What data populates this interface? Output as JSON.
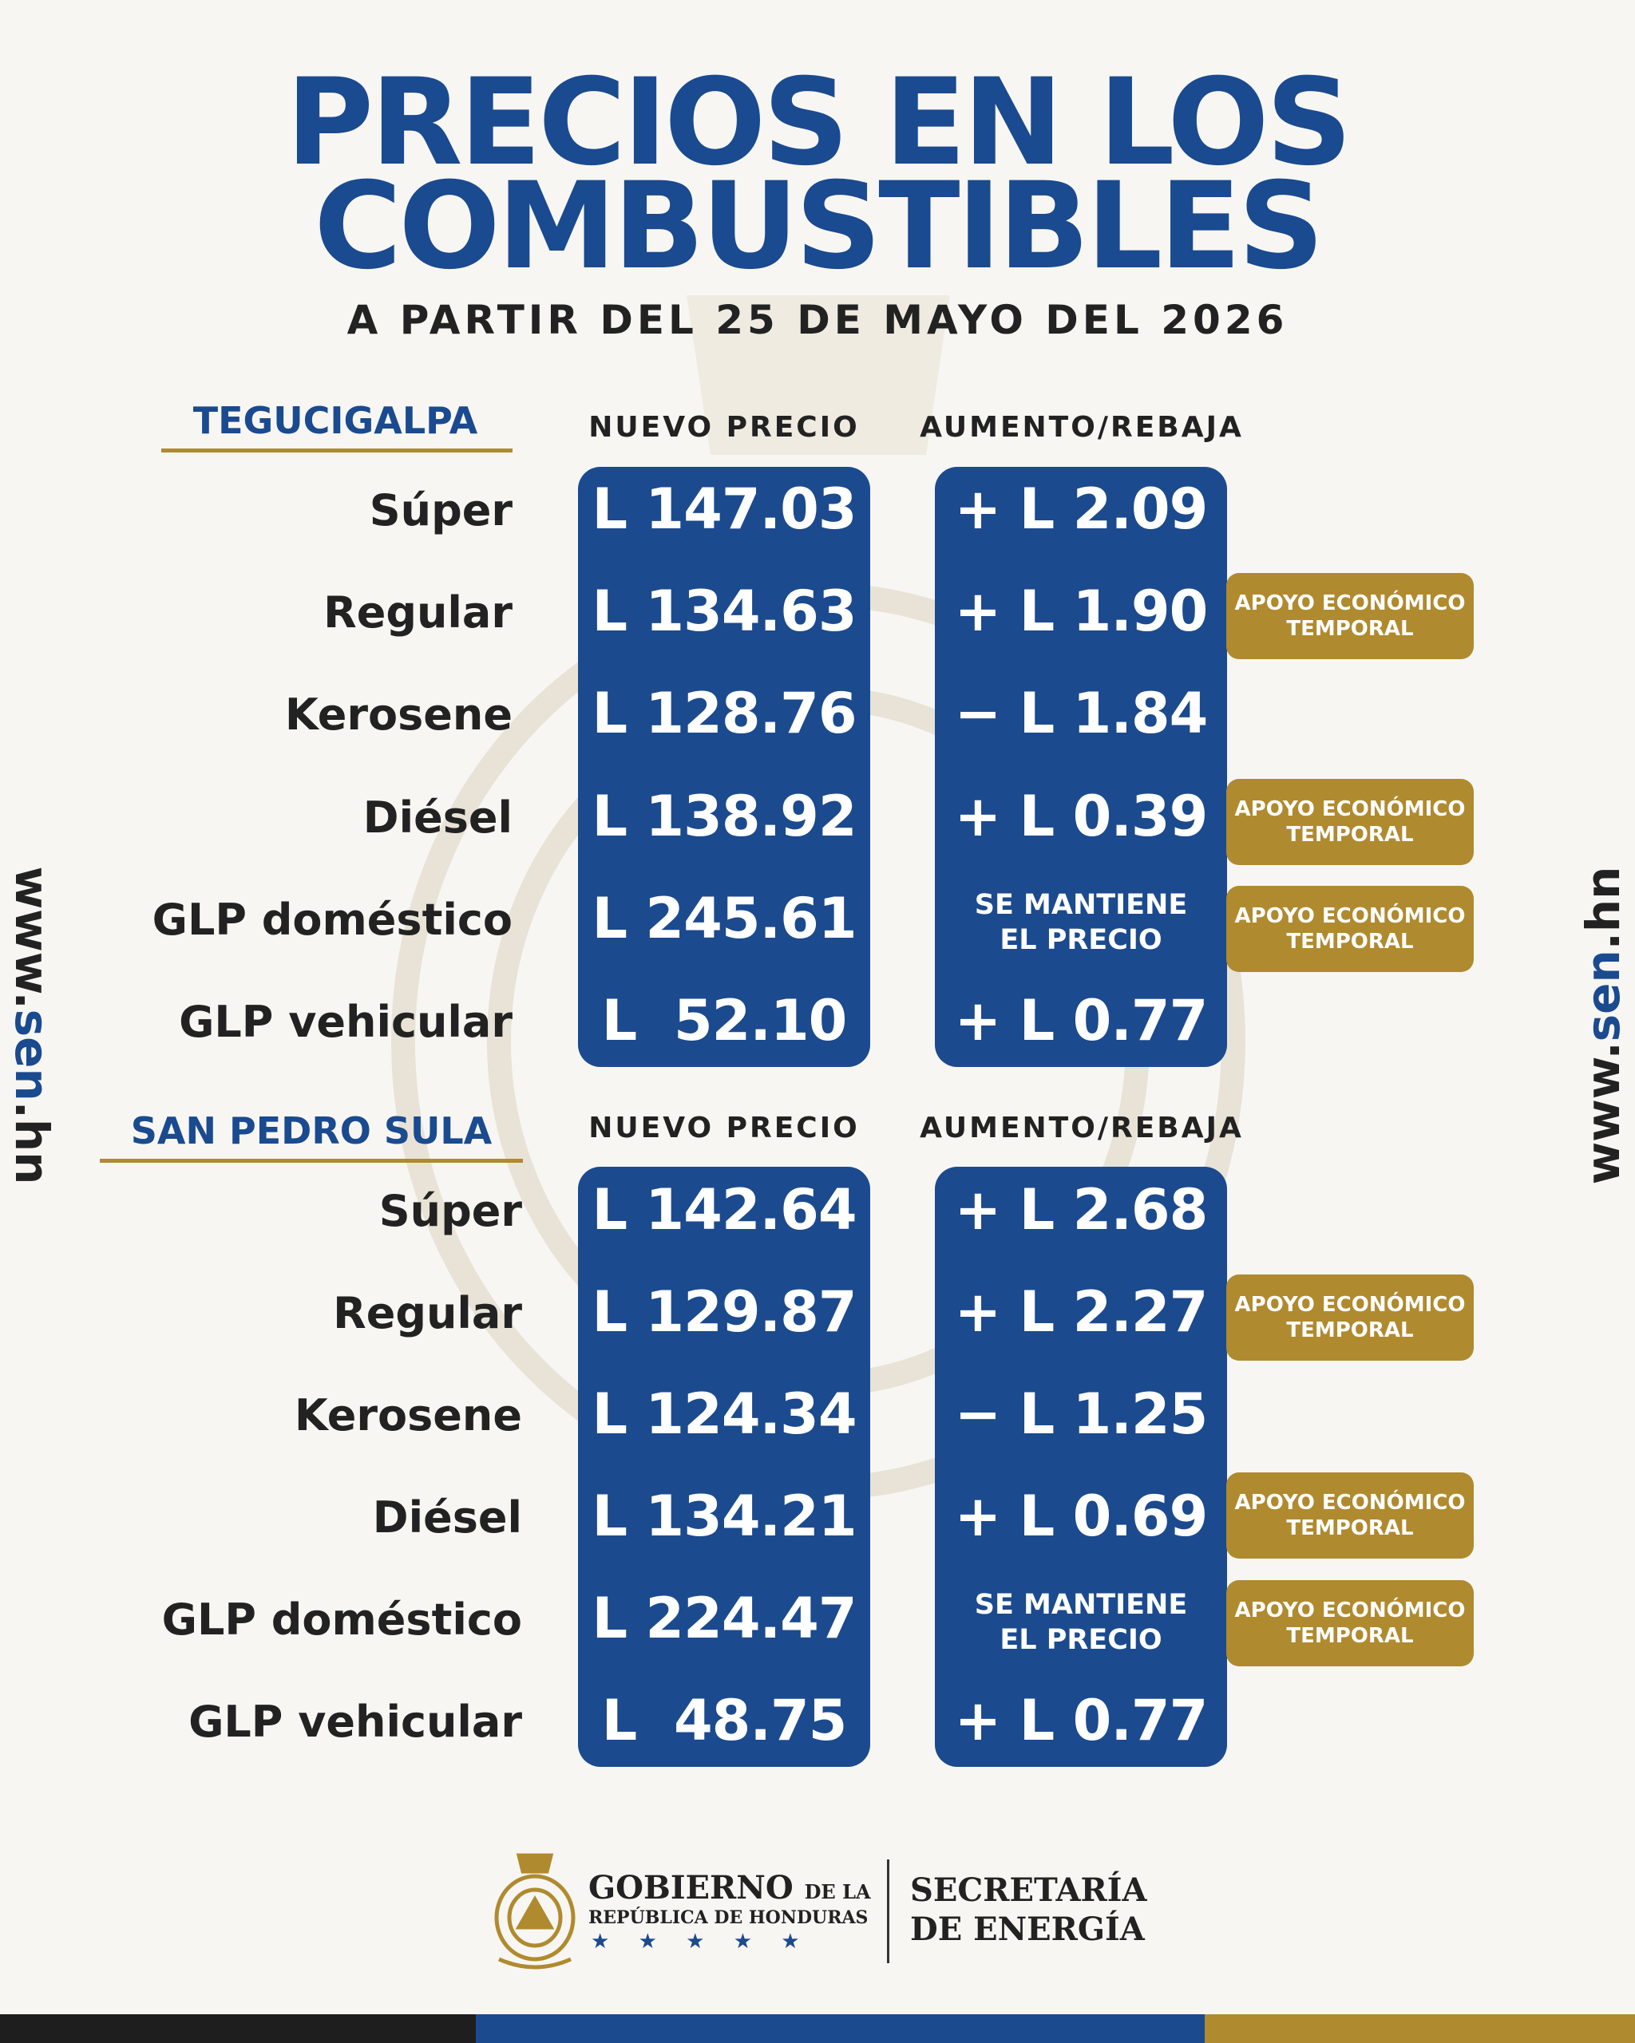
{
  "title_line1": "PRECIOS EN LOS",
  "title_line2": "COMBUSTIBLES",
  "subtitle": "A PARTIR DEL 25 DE MAYO DEL 2026",
  "col_new_price": "NUEVO PRECIO",
  "col_change": "AUMENTO/REBAJA",
  "badge_line1": "APOYO ECONÓMICO",
  "badge_line2": "TEMPORAL",
  "side_prefix": "www.",
  "side_domain": "sen",
  "side_suffix": ".hn",
  "tegucigalpa": {
    "city": "TEGUCIGALPA",
    "rows": [
      {
        "fuel": "Súper",
        "price": "L 147.03",
        "change": "+ L 2.09",
        "badge": false
      },
      {
        "fuel": "Regular",
        "price": "L 134.63",
        "change": "+ L 1.90",
        "badge": true
      },
      {
        "fuel": "Kerosene",
        "price": "L 128.76",
        "change": "− L 1.84",
        "badge": false
      },
      {
        "fuel": "Diésel",
        "price": "L 138.92",
        "change": "+ L 0.39",
        "badge": true
      },
      {
        "fuel": "GLP doméstico",
        "price": "L 245.61",
        "change_line1": "SE MANTIENE",
        "change_line2": "EL PRECIO",
        "badge": true
      },
      {
        "fuel": "GLP vehicular",
        "price": "L  52.10",
        "change": "+ L 0.77",
        "badge": false
      }
    ]
  },
  "san_pedro_sula": {
    "city": "SAN PEDRO SULA",
    "rows": [
      {
        "fuel": "Súper",
        "price": "L 142.64",
        "change": "+ L 2.68",
        "badge": false
      },
      {
        "fuel": "Regular",
        "price": "L 129.87",
        "change": "+ L 2.27",
        "badge": true
      },
      {
        "fuel": "Kerosene",
        "price": "L 124.34",
        "change": "− L 1.25",
        "badge": false
      },
      {
        "fuel": "Diésel",
        "price": "L 134.21",
        "change": "+ L 0.69",
        "badge": true
      },
      {
        "fuel": "GLP doméstico",
        "price": "L 224.47",
        "change_line1": "SE MANTIENE",
        "change_line2": "EL PRECIO",
        "badge": true
      },
      {
        "fuel": "GLP vehicular",
        "price": "L  48.75",
        "change": "+ L 0.77",
        "badge": false
      }
    ]
  },
  "footer": {
    "gov_line1": "GOBIERNO",
    "gov_de_la": "DE LA",
    "gov_line2": "REPÚBLICA DE HONDURAS",
    "stars": "★ ★ ★ ★ ★",
    "sec_line1": "SECRETARÍA",
    "sec_line2": "DE ENERGÍA"
  },
  "colors": {
    "blue": "#1b4a8e",
    "gold": "#b08a2e"
  }
}
